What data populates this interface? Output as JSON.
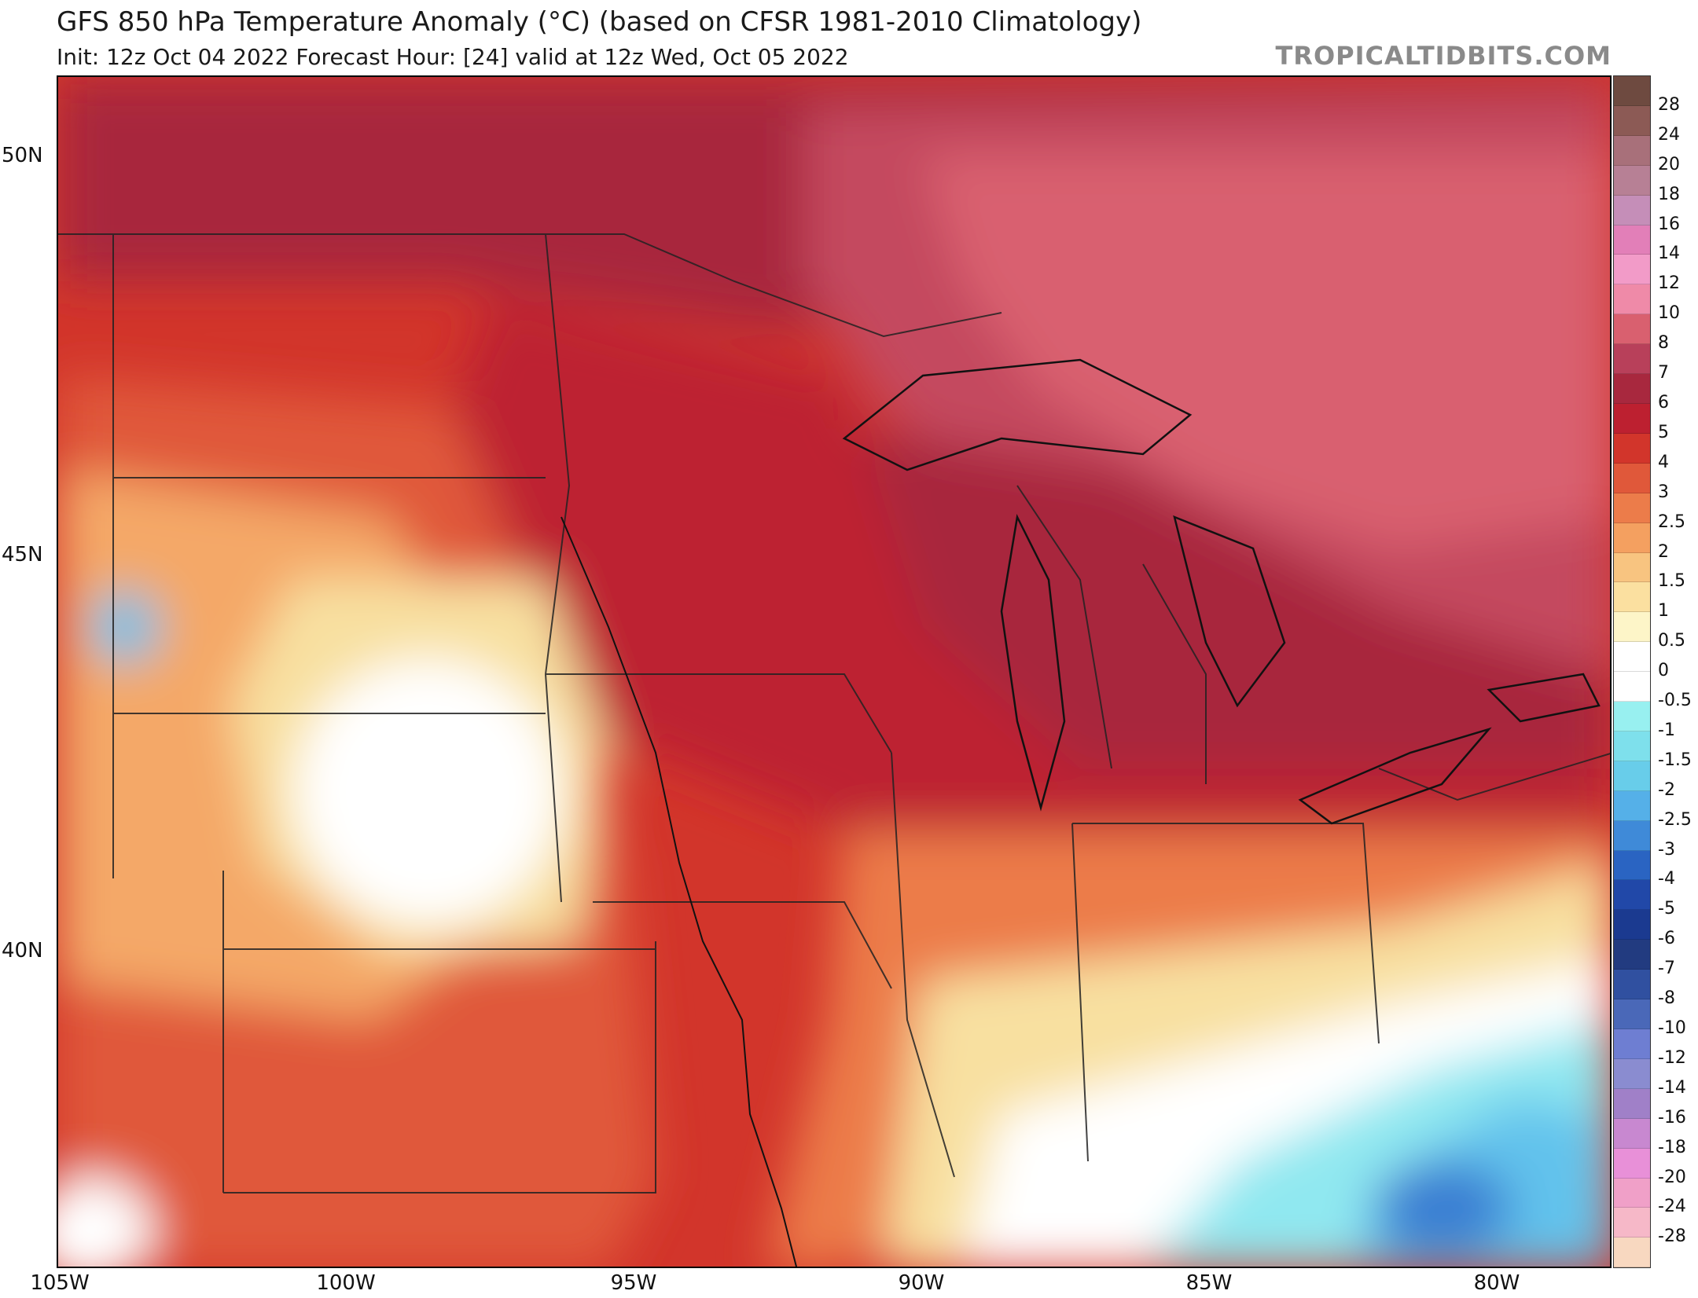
{
  "header": {
    "title": "GFS 850 hPa Temperature Anomaly (°C) (based on CFSR 1981-2010 Climatology)",
    "subtitle": "Init: 12z Oct 04 2022   Forecast Hour: [24]   valid at 12z Wed, Oct 05 2022",
    "credit": "TROPICALTIDBITS.COM"
  },
  "map": {
    "lat_labels": [
      "50N",
      "45N",
      "40N"
    ],
    "lon_labels": [
      "105W",
      "100W",
      "95W",
      "90W",
      "85W",
      "80W"
    ],
    "colors": {
      "warm_7": "#a8283e",
      "warm_6": "#bd2030",
      "warm_5": "#d2352b",
      "warm_4": "#e0583a",
      "warm_3": "#ec7c4a",
      "warm_2": "#f4a868",
      "warm_1": "#f8e0a0",
      "pink_8": "#c44a5e",
      "pink_10": "#d9606f",
      "neutral": "#ffffff",
      "cool_1": "#90e8f0",
      "cool_2": "#62c2ec",
      "cool_3": "#3a7ed2"
    }
  },
  "colorbar": {
    "levels": [
      {
        "label": "28",
        "color": "#6e4a40"
      },
      {
        "label": "24",
        "color": "#8c5a55"
      },
      {
        "label": "20",
        "color": "#a8707a"
      },
      {
        "label": "18",
        "color": "#b78095"
      },
      {
        "label": "16",
        "color": "#c58eb8"
      },
      {
        "label": "14",
        "color": "#e27fb8"
      },
      {
        "label": "12",
        "color": "#f29bc8"
      },
      {
        "label": "10",
        "color": "#ef8aa8"
      },
      {
        "label": "8",
        "color": "#d9606f"
      },
      {
        "label": "7",
        "color": "#b8405a"
      },
      {
        "label": "6",
        "color": "#a8283e"
      },
      {
        "label": "5",
        "color": "#bd2030"
      },
      {
        "label": "4",
        "color": "#d2352b"
      },
      {
        "label": "3",
        "color": "#e0583a"
      },
      {
        "label": "2.5",
        "color": "#ec7c4a"
      },
      {
        "label": "2",
        "color": "#f4a060"
      },
      {
        "label": "1.5",
        "color": "#f8c480"
      },
      {
        "label": "1",
        "color": "#fbe0a0"
      },
      {
        "label": "0.5",
        "color": "#fdf5c8"
      },
      {
        "label": "0",
        "color": "#ffffff"
      },
      {
        "label": "-0.5",
        "color": "#ffffff"
      },
      {
        "label": "-1",
        "color": "#98f0f0"
      },
      {
        "label": "-1.5",
        "color": "#7ee0ec"
      },
      {
        "label": "-2",
        "color": "#68cdea"
      },
      {
        "label": "-2.5",
        "color": "#55b0e8"
      },
      {
        "label": "-3",
        "color": "#3f8ad8"
      },
      {
        "label": "-4",
        "color": "#2a64c2"
      },
      {
        "label": "-5",
        "color": "#2148a8"
      },
      {
        "label": "-6",
        "color": "#1b3a90"
      },
      {
        "label": "-7",
        "color": "#223b80"
      },
      {
        "label": "-8",
        "color": "#3050a0"
      },
      {
        "label": "-10",
        "color": "#4a68b8"
      },
      {
        "label": "-12",
        "color": "#6e7ed2"
      },
      {
        "label": "-14",
        "color": "#8a8cd0"
      },
      {
        "label": "-16",
        "color": "#a080c8"
      },
      {
        "label": "-18",
        "color": "#c888d0"
      },
      {
        "label": "-20",
        "color": "#e890d8"
      },
      {
        "label": "-24",
        "color": "#f0a0c8"
      },
      {
        "label": "-28",
        "color": "#f6b8c8"
      },
      {
        "label": "",
        "color": "#f8d8c0"
      }
    ]
  }
}
